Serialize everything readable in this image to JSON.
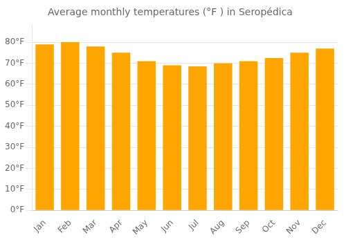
{
  "chart_data": {
    "type": "bar",
    "title": "Average monthly temperatures (°F ) in Seropédica",
    "categories": [
      "Jan",
      "Feb",
      "Mar",
      "Apr",
      "May",
      "Jun",
      "Jul",
      "Aug",
      "Sep",
      "Oct",
      "Nov",
      "Dec"
    ],
    "values": [
      79,
      80,
      78,
      75,
      71,
      69,
      68.5,
      70,
      71,
      72.5,
      75,
      77
    ],
    "color": "#FFA500",
    "ylim": [
      0,
      88
    ],
    "yticks": [
      {
        "value": 0,
        "label": "0°F"
      },
      {
        "value": 10,
        "label": "10°F"
      },
      {
        "value": 20,
        "label": "20°F"
      },
      {
        "value": 30,
        "label": "30°F"
      },
      {
        "value": 40,
        "label": "40°F"
      },
      {
        "value": 50,
        "label": "50°F"
      },
      {
        "value": 60,
        "label": "60°F"
      },
      {
        "value": 70,
        "label": "70°F"
      },
      {
        "value": 80,
        "label": "80°F"
      }
    ],
    "grid": true
  }
}
